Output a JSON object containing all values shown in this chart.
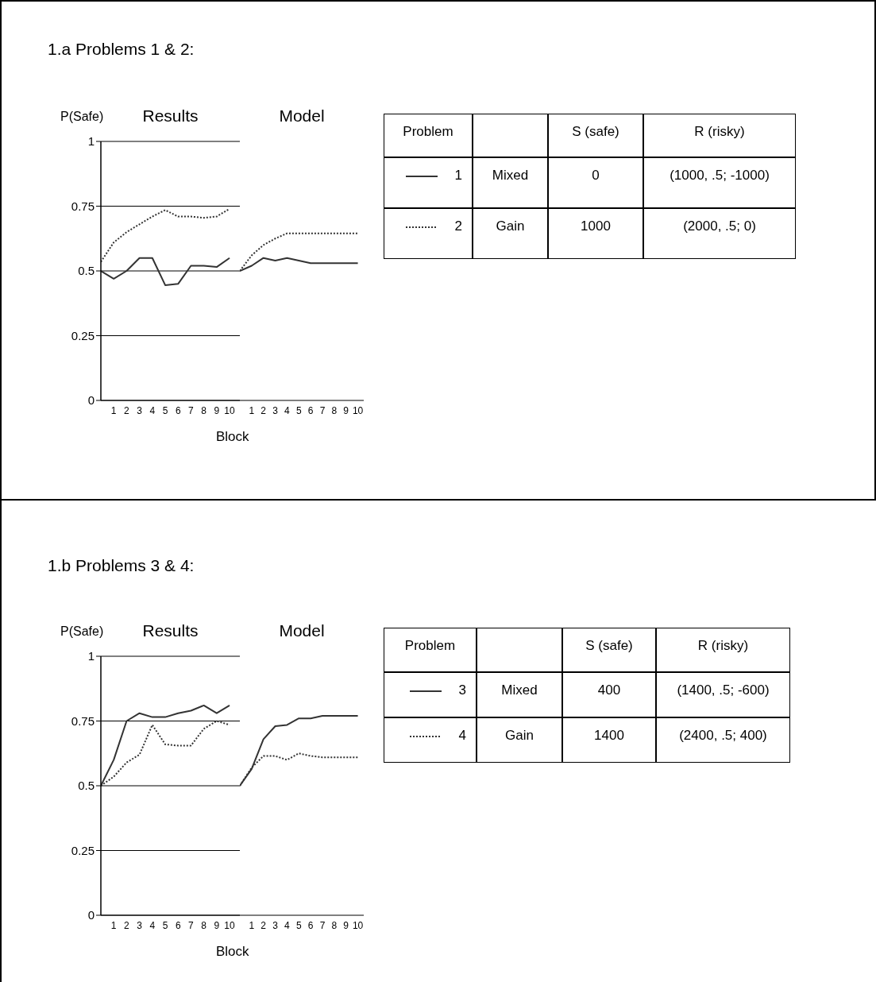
{
  "chart_data": [
    {
      "type": "line",
      "title": "Results",
      "ylabel": "P(Safe)",
      "categories": [
        null,
        "1",
        "2",
        "3",
        "4",
        "5",
        "6",
        "7",
        "8",
        "9",
        "10"
      ],
      "ylim": [
        0,
        1
      ],
      "yticks": [
        0,
        0.25,
        0.5,
        0.75,
        1
      ],
      "grid": "y",
      "legend": "right",
      "marker": "none",
      "annotations": [
        "1.a Problems 1 & 2:",
        "Problem",
        "S (safe)",
        "R (risky)",
        "Mixed",
        "0",
        "(1000, .5; -1000)",
        "Gain",
        "1000",
        "(2000, .5; 0)"
      ],
      "series": [
        {
          "name": "1",
          "color": "#333333",
          "line_style": "solid",
          "values": [
            0.5,
            0.47,
            0.5,
            0.55,
            0.55,
            0.445,
            0.45,
            0.52,
            0.52,
            0.515,
            0.55
          ]
        },
        {
          "name": "2",
          "color": "#333333",
          "line_style": "dotted",
          "values": [
            0.535,
            0.61,
            0.65,
            0.68,
            0.71,
            0.735,
            0.71,
            0.71,
            0.705,
            0.71,
            0.74
          ]
        }
      ]
    },
    {
      "type": "line",
      "title": "Model",
      "xlabel": "Block",
      "categories": [
        null,
        "1",
        "2",
        "3",
        "4",
        "5",
        "6",
        "7",
        "8",
        "9",
        "10"
      ],
      "ylim": [
        0,
        1
      ],
      "yticks": [
        0,
        0.25,
        0.5,
        0.75,
        1
      ],
      "grid": "y",
      "marker": "none",
      "tick_labels": "x",
      "series": [
        {
          "color": "#333333",
          "line_style": "solid",
          "values": [
            0.5,
            0.52,
            0.55,
            0.54,
            0.55,
            0.54,
            0.53,
            0.53,
            0.53,
            0.53,
            0.53
          ]
        },
        {
          "color": "#333333",
          "line_style": "dotted",
          "values": [
            0.5,
            0.56,
            0.6,
            0.625,
            0.645,
            0.645,
            0.645,
            0.645,
            0.645,
            0.645,
            0.645
          ]
        }
      ]
    },
    {
      "type": "line",
      "title": "Results",
      "ylabel": "P(Safe)",
      "categories": [
        null,
        "1",
        "2",
        "3",
        "4",
        "5",
        "6",
        "7",
        "8",
        "9",
        "10"
      ],
      "ylim": [
        0,
        1
      ],
      "yticks": [
        0,
        0.25,
        0.5,
        0.75,
        1
      ],
      "grid": "y",
      "legend": "right",
      "marker": "none",
      "annotations": [
        "1.b Problems 3 & 4:",
        "Problem",
        "S (safe)",
        "R (risky)",
        "Mixed",
        "400",
        "(1400, .5; -600)",
        "Gain",
        "1400",
        "(2400, .5; 400)"
      ],
      "series": [
        {
          "name": "3",
          "color": "#333333",
          "line_style": "solid",
          "values": [
            0.5,
            0.6,
            0.75,
            0.78,
            0.765,
            0.765,
            0.78,
            0.79,
            0.81,
            0.78,
            0.81
          ]
        },
        {
          "name": "4",
          "color": "#333333",
          "line_style": "dotted",
          "values": [
            0.5,
            0.535,
            0.59,
            0.62,
            0.735,
            0.66,
            0.655,
            0.655,
            0.72,
            0.75,
            0.735
          ]
        }
      ]
    },
    {
      "type": "line",
      "title": "Model",
      "xlabel": "Block",
      "categories": [
        null,
        "1",
        "2",
        "3",
        "4",
        "5",
        "6",
        "7",
        "8",
        "9",
        "10"
      ],
      "ylim": [
        0,
        1
      ],
      "yticks": [
        0,
        0.25,
        0.5,
        0.75,
        1
      ],
      "grid": "y",
      "marker": "none",
      "tick_labels": "x",
      "series": [
        {
          "color": "#333333",
          "line_style": "solid",
          "values": [
            0.5,
            0.565,
            0.68,
            0.73,
            0.735,
            0.76,
            0.76,
            0.77,
            0.77,
            0.77,
            0.77
          ]
        },
        {
          "color": "#333333",
          "line_style": "dotted",
          "values": [
            0.5,
            0.57,
            0.615,
            0.615,
            0.6,
            0.625,
            0.615,
            0.61,
            0.61,
            0.61,
            0.61
          ]
        }
      ]
    }
  ]
}
